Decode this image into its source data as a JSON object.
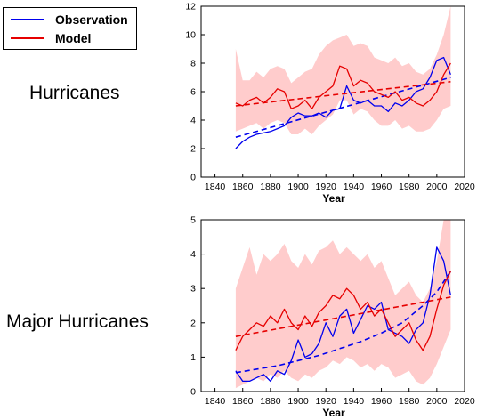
{
  "legend": {
    "items": [
      {
        "label": "Observation",
        "color": "#0000ee"
      },
      {
        "label": "Model",
        "color": "#e60000"
      }
    ]
  },
  "colors": {
    "observation": "#0000ee",
    "model": "#e60000",
    "band": "#ffcccc"
  },
  "chart_data": [
    {
      "type": "line",
      "panel_label": "Hurricanes",
      "title": "",
      "xlabel": "Year",
      "ylabel": "",
      "xlim": [
        1830,
        2020
      ],
      "ylim": [
        0,
        12
      ],
      "xticks": [
        1840,
        1860,
        1880,
        1900,
        1920,
        1940,
        1960,
        1980,
        2000,
        2020
      ],
      "yticks": [
        0,
        2,
        4,
        6,
        8,
        10,
        12
      ],
      "grid": false,
      "legend": "top-left",
      "series": [
        {
          "name": "Observation",
          "style": "solid",
          "color": "#0000ee",
          "x": [
            1855,
            1860,
            1865,
            1870,
            1875,
            1880,
            1885,
            1890,
            1895,
            1900,
            1905,
            1910,
            1915,
            1920,
            1925,
            1930,
            1935,
            1940,
            1945,
            1950,
            1955,
            1960,
            1965,
            1970,
            1975,
            1980,
            1985,
            1990,
            1995,
            2000,
            2005,
            2010
          ],
          "y": [
            2.0,
            2.5,
            2.8,
            3.0,
            3.1,
            3.2,
            3.4,
            3.6,
            4.2,
            4.5,
            4.3,
            4.3,
            4.5,
            4.2,
            4.7,
            4.8,
            6.4,
            5.4,
            5.2,
            5.4,
            5.0,
            5.0,
            4.6,
            5.2,
            5.0,
            5.4,
            6.0,
            6.2,
            7.0,
            8.2,
            8.4,
            7.2
          ]
        },
        {
          "name": "",
          "style": "dashed",
          "color": "#0000ee",
          "x": [
            1855,
            2010
          ],
          "y": [
            2.8,
            7.0
          ]
        },
        {
          "name": "Model",
          "style": "solid",
          "color": "#e60000",
          "x": [
            1855,
            1860,
            1865,
            1870,
            1875,
            1880,
            1885,
            1890,
            1895,
            1900,
            1905,
            1910,
            1915,
            1920,
            1925,
            1930,
            1935,
            1940,
            1945,
            1950,
            1955,
            1960,
            1965,
            1970,
            1975,
            1980,
            1985,
            1990,
            1995,
            2000,
            2005,
            2010
          ],
          "y": [
            5.2,
            5.0,
            5.4,
            5.6,
            5.2,
            5.6,
            6.2,
            6.0,
            4.8,
            5.0,
            5.4,
            4.8,
            5.6,
            6.0,
            6.4,
            7.8,
            7.6,
            6.4,
            6.8,
            6.6,
            6.0,
            5.8,
            5.6,
            6.0,
            5.4,
            5.6,
            5.2,
            5.0,
            5.4,
            6.0,
            7.2,
            8.0
          ]
        },
        {
          "name": "",
          "style": "dashed",
          "color": "#e60000",
          "x": [
            1855,
            2010
          ],
          "y": [
            5.0,
            6.7
          ]
        }
      ],
      "band": {
        "x": [
          1855,
          1860,
          1865,
          1870,
          1875,
          1880,
          1885,
          1890,
          1895,
          1900,
          1905,
          1910,
          1915,
          1920,
          1925,
          1930,
          1935,
          1940,
          1945,
          1950,
          1955,
          1960,
          1965,
          1970,
          1975,
          1980,
          1985,
          1990,
          1995,
          2000,
          2005,
          2010
        ],
        "lower": [
          3.2,
          3.4,
          3.6,
          3.8,
          3.4,
          3.8,
          4.0,
          3.8,
          3.0,
          3.0,
          3.4,
          3.0,
          3.6,
          4.0,
          4.4,
          5.4,
          5.4,
          4.4,
          4.8,
          4.6,
          4.0,
          3.6,
          3.6,
          4.0,
          3.4,
          3.6,
          3.2,
          3.2,
          3.4,
          4.0,
          4.8,
          5.0
        ],
        "upper": [
          9.0,
          6.8,
          6.8,
          7.4,
          7.0,
          7.6,
          7.8,
          7.6,
          6.6,
          7.0,
          7.4,
          7.6,
          8.6,
          9.2,
          9.6,
          9.8,
          10.0,
          9.2,
          9.4,
          9.2,
          8.4,
          8.2,
          8.0,
          8.4,
          7.8,
          8.0,
          7.4,
          7.2,
          7.6,
          8.6,
          10.0,
          12.0
        ]
      }
    },
    {
      "type": "line",
      "panel_label": "Major Hurricanes",
      "title": "",
      "xlabel": "Year",
      "ylabel": "",
      "xlim": [
        1830,
        2020
      ],
      "ylim": [
        0,
        5
      ],
      "xticks": [
        1840,
        1860,
        1880,
        1900,
        1920,
        1940,
        1960,
        1980,
        2000,
        2020
      ],
      "yticks": [
        0,
        1,
        2,
        3,
        4,
        5
      ],
      "grid": false,
      "legend": "none",
      "series": [
        {
          "name": "Observation",
          "style": "solid",
          "color": "#0000ee",
          "x": [
            1855,
            1860,
            1865,
            1870,
            1875,
            1880,
            1885,
            1890,
            1895,
            1900,
            1905,
            1910,
            1915,
            1920,
            1925,
            1930,
            1935,
            1940,
            1945,
            1950,
            1955,
            1960,
            1965,
            1970,
            1975,
            1980,
            1985,
            1990,
            1995,
            2000,
            2005,
            2010
          ],
          "y": [
            0.6,
            0.3,
            0.3,
            0.4,
            0.5,
            0.3,
            0.6,
            0.5,
            0.9,
            1.5,
            1.0,
            1.1,
            1.4,
            2.0,
            1.6,
            2.2,
            2.4,
            1.7,
            2.1,
            2.5,
            2.4,
            2.6,
            1.8,
            1.7,
            1.6,
            1.4,
            1.8,
            2.0,
            2.8,
            4.2,
            3.8,
            2.8
          ]
        },
        {
          "name": "",
          "style": "dashed",
          "color": "#0000ee",
          "x": [
            1855,
            1870,
            1885,
            1900,
            1915,
            1930,
            1945,
            1960,
            1975,
            1990,
            2000,
            2010
          ],
          "y": [
            0.55,
            0.65,
            0.75,
            0.9,
            1.05,
            1.25,
            1.45,
            1.7,
            2.0,
            2.5,
            2.9,
            3.5
          ]
        },
        {
          "name": "Model",
          "style": "solid",
          "color": "#e60000",
          "x": [
            1855,
            1860,
            1865,
            1870,
            1875,
            1880,
            1885,
            1890,
            1895,
            1900,
            1905,
            1910,
            1915,
            1920,
            1925,
            1930,
            1935,
            1940,
            1945,
            1950,
            1955,
            1960,
            1965,
            1970,
            1975,
            1980,
            1985,
            1990,
            1995,
            2000,
            2005,
            2010
          ],
          "y": [
            1.2,
            1.6,
            1.8,
            2.0,
            1.9,
            2.2,
            2.0,
            2.4,
            2.0,
            1.8,
            2.2,
            1.9,
            2.3,
            2.5,
            2.8,
            2.7,
            3.0,
            2.8,
            2.4,
            2.6,
            2.2,
            2.4,
            2.0,
            1.6,
            1.8,
            2.0,
            1.5,
            1.2,
            1.6,
            2.4,
            3.1,
            3.5
          ]
        },
        {
          "name": "",
          "style": "dashed",
          "color": "#e60000",
          "x": [
            1855,
            2010
          ],
          "y": [
            1.6,
            2.75
          ]
        }
      ],
      "band": {
        "x": [
          1855,
          1860,
          1865,
          1870,
          1875,
          1880,
          1885,
          1890,
          1895,
          1900,
          1905,
          1910,
          1915,
          1920,
          1925,
          1930,
          1935,
          1940,
          1945,
          1950,
          1955,
          1960,
          1965,
          1970,
          1975,
          1980,
          1985,
          1990,
          1995,
          2000,
          2005,
          2010
        ],
        "lower": [
          0.1,
          0.2,
          0.3,
          0.4,
          0.3,
          0.5,
          0.4,
          0.6,
          0.4,
          0.3,
          0.5,
          0.4,
          0.6,
          0.7,
          0.9,
          0.8,
          1.0,
          0.9,
          0.7,
          0.8,
          0.6,
          0.8,
          0.7,
          0.4,
          0.5,
          0.6,
          0.3,
          0.2,
          0.4,
          0.8,
          1.3,
          1.8
        ],
        "upper": [
          3.0,
          3.6,
          4.2,
          3.4,
          4.0,
          3.8,
          4.0,
          4.3,
          3.8,
          3.6,
          4.0,
          3.7,
          4.1,
          4.2,
          4.4,
          4.0,
          4.2,
          4.0,
          3.8,
          4.0,
          3.6,
          3.8,
          3.3,
          2.8,
          3.0,
          3.2,
          2.8,
          2.6,
          3.0,
          3.8,
          5.0,
          5.0
        ]
      }
    }
  ]
}
